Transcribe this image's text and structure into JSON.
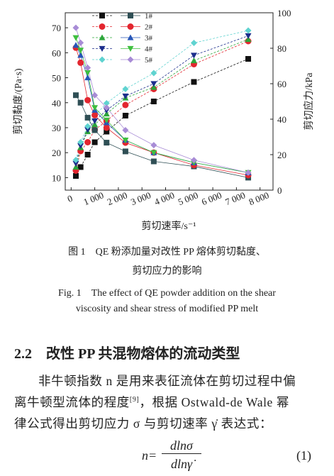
{
  "chart_data": {
    "type": "line",
    "xlabel": "剪切速率/s⁻¹",
    "ylabel": "剪切黏度/(Pa·s)",
    "y2label": "剪切应力/kPa",
    "x": [
      200,
      400,
      700,
      1000,
      1500,
      2300,
      3500,
      5200,
      7500
    ],
    "xlim": [
      -250,
      8550
    ],
    "xticks": [
      0,
      {
        "value": 1000,
        "label": "1 000"
      },
      {
        "value": 2000,
        "label": "2 000"
      },
      {
        "value": 3000,
        "label": "3 000"
      },
      {
        "value": 4000,
        "label": "4 000"
      },
      {
        "value": 5000,
        "label": "5 000"
      },
      {
        "value": 6000,
        "label": "6 000"
      },
      {
        "value": 7000,
        "label": "7 000"
      },
      {
        "value": 8000,
        "label": "8 000"
      }
    ],
    "ylim": [
      5,
      76
    ],
    "yticks": [
      10,
      20,
      30,
      40,
      50,
      60,
      70
    ],
    "y2lim": [
      0,
      100
    ],
    "y2ticks": [
      0,
      20,
      40,
      60,
      80,
      100
    ],
    "legend": "upper left",
    "series": [
      {
        "color": "#111111",
        "marker": "square",
        "axis": "y2",
        "dashed": true,
        "values": [
          8,
          13,
          20,
          27,
          33,
          42,
          50,
          61,
          74
        ]
      },
      {
        "color": "#e3262f",
        "marker": "circle",
        "axis": "y2",
        "dashed": true,
        "values": [
          11,
          22,
          27,
          34,
          39,
          48,
          57,
          71,
          84
        ]
      },
      {
        "color": "#2ca63a",
        "marker": "triangle-up",
        "axis": "y2",
        "dashed": true,
        "values": [
          13,
          24,
          33,
          37,
          43,
          52,
          58,
          73,
          85
        ]
      },
      {
        "color": "#1c2e8c",
        "marker": "triangle-down",
        "axis": "y2",
        "dashed": true,
        "values": [
          15,
          25,
          34,
          39,
          45,
          53,
          60,
          76,
          87
        ]
      },
      {
        "color": "#5fd3d0",
        "marker": "diamond",
        "axis": "y2",
        "dashed": true,
        "values": [
          17,
          27,
          36,
          42,
          49,
          57,
          66,
          83,
          90
        ]
      },
      {
        "name": "1#",
        "color": "#2f4f55",
        "marker": "square",
        "values": [
          43,
          40,
          34,
          29,
          24,
          20.5,
          16.5,
          14.5,
          10
        ]
      },
      {
        "name": "2#",
        "color": "#e3262f",
        "marker": "circle",
        "values": [
          62,
          56,
          41,
          35,
          30,
          24,
          20,
          15,
          11
        ]
      },
      {
        "name": "3#",
        "color": "#2756b8",
        "marker": "triangle-up",
        "values": [
          63,
          59,
          50,
          37,
          32,
          25,
          20,
          16,
          12
        ]
      },
      {
        "name": "4#",
        "color": "#3fbf3f",
        "marker": "triangle-down",
        "values": [
          66,
          61,
          52,
          38,
          33,
          25,
          20,
          16,
          12
        ]
      },
      {
        "name": "5#",
        "color": "#a88cd6",
        "marker": "diamond",
        "values": [
          70,
          64,
          54,
          43,
          38,
          29,
          23,
          17,
          12
        ]
      }
    ]
  },
  "caption": {
    "cn_line1": "图 1　QE 粉添加量对改性 PP 熔体剪切黏度、",
    "cn_line2": "剪切应力的影响",
    "en_line1": "Fig. 1　The effect of QE powder addition on the shear",
    "en_line2": "viscosity and shear stress of modified PP melt"
  },
  "section": {
    "heading": "2.2　改性 PP 共混物熔体的流动类型",
    "paragraph": [
      "非牛顿指数 n 是用来表征流体在剪切过程中偏",
      "离牛顿型流体的程度",
      "[9]",
      "，根据 Ostwald-de Wale 幂",
      "律公式得出剪切应力 σ 与剪切速率 γ̇ 表达式："
    ]
  },
  "equation": {
    "lhs": "n=",
    "numerator": "dlnσ",
    "denominator": "dlnγ̇",
    "number": "(1)"
  }
}
